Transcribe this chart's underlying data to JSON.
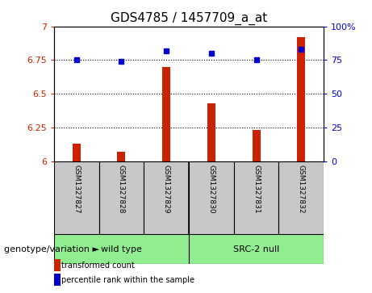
{
  "title": "GDS4785 / 1457709_a_at",
  "samples": [
    "GSM1327827",
    "GSM1327828",
    "GSM1327829",
    "GSM1327830",
    "GSM1327831",
    "GSM1327832"
  ],
  "red_values": [
    6.13,
    6.07,
    6.7,
    6.43,
    6.23,
    6.92
  ],
  "blue_values": [
    75,
    74,
    82,
    80,
    75,
    83
  ],
  "ylim_left": [
    6.0,
    7.0
  ],
  "ylim_right": [
    0,
    100
  ],
  "yticks_left": [
    6.0,
    6.25,
    6.5,
    6.75,
    7.0
  ],
  "yticks_right": [
    0,
    25,
    50,
    75,
    100
  ],
  "ytick_labels_left": [
    "6",
    "6.25",
    "6.5",
    "6.75",
    "7"
  ],
  "ytick_labels_right": [
    "0",
    "25",
    "50",
    "75",
    "100%"
  ],
  "hlines": [
    6.25,
    6.5,
    6.75
  ],
  "group_wt_label": "wild type",
  "group_src_label": "SRC-2 null",
  "group_color": "#90ee90",
  "group_label_prefix": "genotype/variation",
  "bar_color": "#cc2200",
  "dot_color": "#0000cc",
  "bar_width": 0.18,
  "background_plot": "#ffffff",
  "background_sample": "#c8c8c8",
  "legend_red": "transformed count",
  "legend_blue": "percentile rank within the sample",
  "title_fontsize": 11,
  "tick_fontsize": 8,
  "sample_fontsize": 6.5,
  "group_fontsize": 8,
  "legend_fontsize": 7,
  "genotype_fontsize": 8
}
